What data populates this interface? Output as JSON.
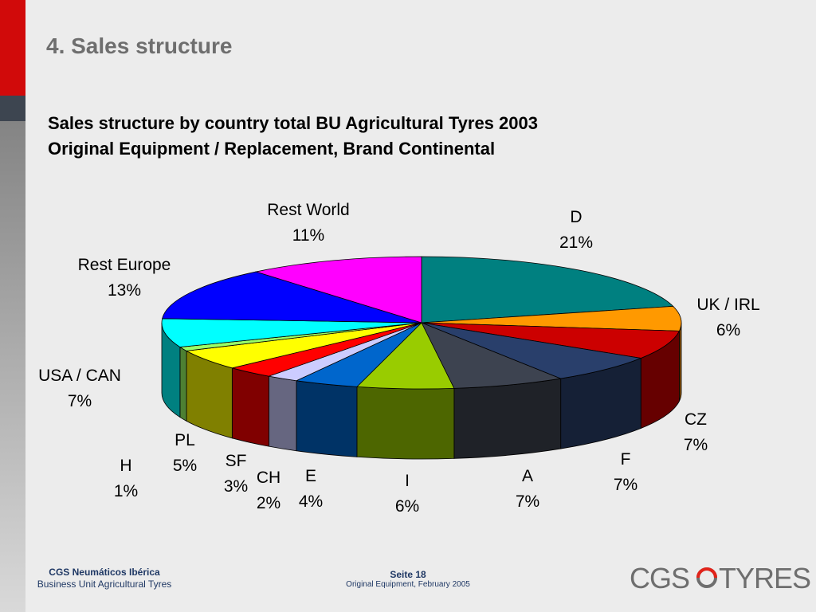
{
  "slide": {
    "section_title": "4. Sales structure",
    "subtitle_line1": "Sales structure by country total BU Agricultural Tyres 2003",
    "subtitle_line2": "Original Equipment / Replacement, Brand Continental"
  },
  "footer": {
    "company": "CGS Neumáticos Ibérica",
    "unit": "Business Unit Agricultural Tyres",
    "page": "Seite 18",
    "subtitle": "Original Equipment, February 2005",
    "logo_left": "CGS",
    "logo_right": "TYRES"
  },
  "chart_data": {
    "type": "pie",
    "style": "3d",
    "slices": [
      {
        "label": "D",
        "value": 21,
        "display": "21%",
        "color": "#008080"
      },
      {
        "label": "UK / IRL",
        "value": 6,
        "display": "6%",
        "color": "#ff9900"
      },
      {
        "label": "CZ",
        "value": 7,
        "display": "7%",
        "color": "#cc0000"
      },
      {
        "label": "F",
        "value": 7,
        "display": "7%",
        "color": "#293f6b"
      },
      {
        "label": "A",
        "value": 7,
        "display": "7%",
        "color": "#3d4350"
      },
      {
        "label": "I",
        "value": 6,
        "display": "6%",
        "color": "#99cc00"
      },
      {
        "label": "E",
        "value": 4,
        "display": "4%",
        "color": "#0066cc"
      },
      {
        "label": "CH",
        "value": 2,
        "display": "2%",
        "color": "#ccccff"
      },
      {
        "label": "SF",
        "value": 3,
        "display": "3%",
        "color": "#ff0000"
      },
      {
        "label": "PL",
        "value": 5,
        "display": "5%",
        "color": "#ffff00"
      },
      {
        "label": "H",
        "value": 1,
        "display": "1%",
        "color": "#99ff66"
      },
      {
        "label": "USA / CAN",
        "value": 7,
        "display": "7%",
        "color": "#00ffff"
      },
      {
        "label": "Rest Europe",
        "value": 13,
        "display": "13%",
        "color": "#0000ff"
      },
      {
        "label": "Rest World",
        "value": 11,
        "display": "11%",
        "color": "#ff00ff"
      }
    ]
  }
}
